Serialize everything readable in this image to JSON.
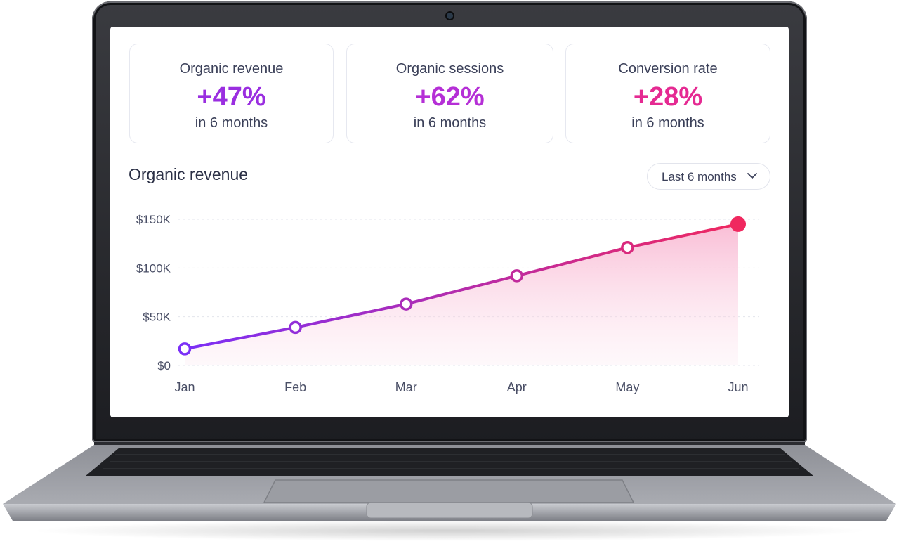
{
  "kpis": [
    {
      "label": "Organic revenue",
      "value": "+47%",
      "sub": "in 6 months",
      "color": "#9a2ee0"
    },
    {
      "label": "Organic sessions",
      "value": "+62%",
      "sub": "in 6 months",
      "color": "#b52fd6"
    },
    {
      "label": "Conversion rate",
      "value": "+28%",
      "sub": "in 6 months",
      "color": "#e52a92"
    }
  ],
  "section": {
    "title": "Organic revenue"
  },
  "range": {
    "selected": "Last 6 months",
    "icon": "chevron-down-icon"
  },
  "colors": {
    "line_start": "#7b2ff7",
    "line_end": "#f0285f",
    "area": "#fbd3e4"
  },
  "chart_data": {
    "type": "area",
    "categories": [
      "Jan",
      "Feb",
      "Mar",
      "Apr",
      "May",
      "Jun"
    ],
    "series": [
      {
        "values": [
          17000,
          39000,
          63000,
          92000,
          121000,
          145000
        ]
      }
    ],
    "y_ticks": [
      "$0",
      "$50K",
      "$100K",
      "$150K"
    ],
    "y_tick_values": [
      0,
      50000,
      100000,
      150000
    ],
    "ylim": [
      0,
      150000
    ],
    "grid": true,
    "legend": "none"
  }
}
